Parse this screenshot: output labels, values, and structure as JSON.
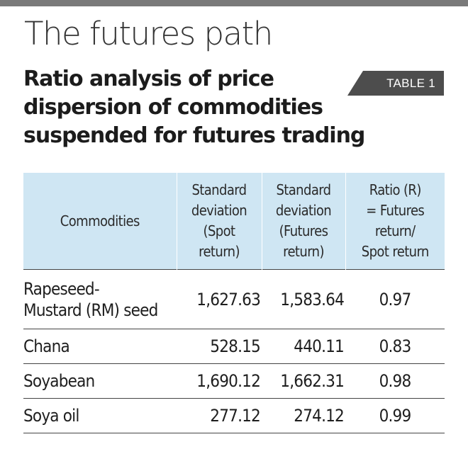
{
  "headline": "The futures path",
  "subtitle_lines": [
    "Ratio analysis of price",
    "dispersion of commodities",
    "suspended for futures trading"
  ],
  "table_label": "TABLE 1",
  "colors": {
    "top_rule": "#7a7a7a",
    "header_bg": "#cfe6f3",
    "tag_bg": "#4d4d4d"
  },
  "table": {
    "headers": [
      {
        "lines": [
          "Commodities"
        ]
      },
      {
        "lines": [
          "Standard",
          "deviation",
          "(Spot",
          "return)"
        ]
      },
      {
        "lines": [
          "Standard",
          "deviation",
          "(Futures",
          "return)"
        ]
      },
      {
        "lines": [
          "Ratio (R)",
          "= Futures",
          "return/",
          "Spot return"
        ]
      }
    ],
    "rows": [
      {
        "commodity_lines": [
          "Rapeseed-",
          "Mustard (RM) seed"
        ],
        "spot_sd": "1,627.63",
        "futures_sd": "1,583.64",
        "ratio": "0.97"
      },
      {
        "commodity_lines": [
          "Chana"
        ],
        "spot_sd": "528.15",
        "futures_sd": "440.11",
        "ratio": "0.83"
      },
      {
        "commodity_lines": [
          "Soyabean"
        ],
        "spot_sd": "1,690.12",
        "futures_sd": "1,662.31",
        "ratio": "0.98"
      },
      {
        "commodity_lines": [
          "Soya oil"
        ],
        "spot_sd": "277.12",
        "futures_sd": "274.12",
        "ratio": "0.99"
      }
    ]
  }
}
